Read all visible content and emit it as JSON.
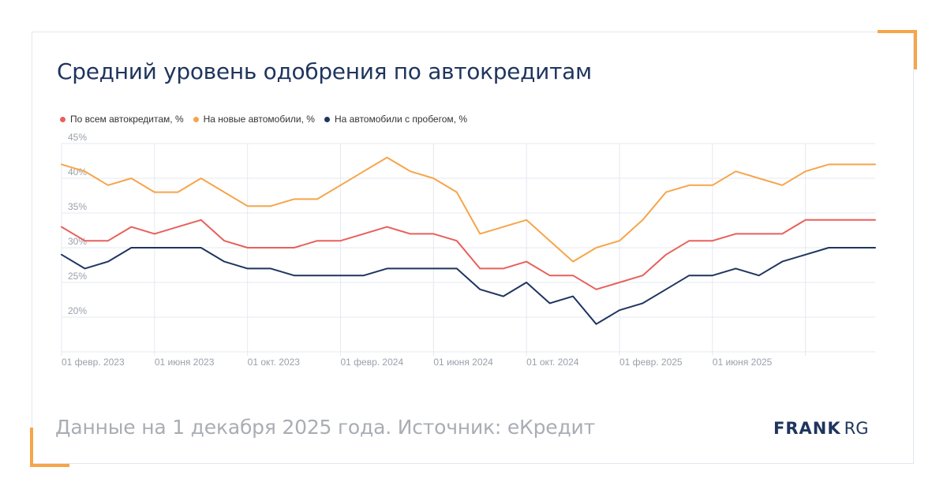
{
  "title": "Средний уровень одобрения по автокредитам",
  "footer": "Данные на 1 декабря 2025 года. Источник: еКредит",
  "logo": {
    "bold": "FRANK",
    "thin": "RG"
  },
  "colors": {
    "accent": "#f6a54a",
    "title": "#1f355e",
    "all": "#e8605a",
    "new": "#f6a54a",
    "used": "#1f355e"
  },
  "legend": [
    {
      "label": "По всем автокредитам, %",
      "color": "#e8605a"
    },
    {
      "label": "На новые автомобили, %",
      "color": "#f6a54a"
    },
    {
      "label": "На автомобили с пробегом, %",
      "color": "#1f355e"
    }
  ],
  "chart_data": {
    "type": "line",
    "x": [
      "2023-01",
      "2023-02",
      "2023-03",
      "2023-04",
      "2023-05",
      "2023-06",
      "2023-07",
      "2023-08",
      "2023-09",
      "2023-10",
      "2023-11",
      "2023-12",
      "2024-01",
      "2024-02",
      "2024-03",
      "2024-04",
      "2024-05",
      "2024-06",
      "2024-07",
      "2024-08",
      "2024-09",
      "2024-10",
      "2024-11",
      "2024-12",
      "2025-01",
      "2025-02",
      "2025-03",
      "2025-04",
      "2025-05",
      "2025-06",
      "2025-07",
      "2025-08",
      "2025-09",
      "2025-10",
      "2025-11",
      "2025-12"
    ],
    "x_ticks": [
      "01 февр. 2023",
      "01 июня 2023",
      "01 окт. 2023",
      "01 февр. 2024",
      "01 июня 2024",
      "01 окт. 2024",
      "01 февр. 2025",
      "01 июня 2025"
    ],
    "y_ticks": [
      "45%",
      "40%",
      "35%",
      "30%",
      "25%",
      "20%"
    ],
    "ylim": [
      15,
      45
    ],
    "grid": true,
    "legend_position": "top-left",
    "series": [
      {
        "name": "По всем автокредитам, %",
        "color": "#e8605a",
        "values": [
          33,
          31,
          31,
          33,
          32,
          33,
          34,
          31,
          30,
          30,
          30,
          31,
          31,
          32,
          33,
          32,
          32,
          31,
          27,
          27,
          28,
          26,
          26,
          24,
          25,
          26,
          29,
          31,
          31,
          32,
          32,
          32,
          34,
          34,
          34,
          34
        ]
      },
      {
        "name": "На новые автомобили, %",
        "color": "#f6a54a",
        "values": [
          42,
          41,
          39,
          40,
          38,
          38,
          40,
          38,
          36,
          36,
          37,
          37,
          39,
          41,
          43,
          41,
          40,
          38,
          32,
          33,
          34,
          31,
          28,
          30,
          31,
          34,
          38,
          39,
          39,
          41,
          40,
          39,
          41,
          42,
          42,
          42
        ]
      },
      {
        "name": "На автомобили с пробегом, %",
        "color": "#1f355e",
        "values": [
          29,
          27,
          28,
          30,
          30,
          30,
          30,
          28,
          27,
          27,
          26,
          26,
          26,
          26,
          27,
          27,
          27,
          27,
          24,
          23,
          25,
          22,
          23,
          19,
          21,
          22,
          24,
          26,
          26,
          27,
          26,
          28,
          29,
          30,
          30,
          30
        ]
      }
    ]
  }
}
